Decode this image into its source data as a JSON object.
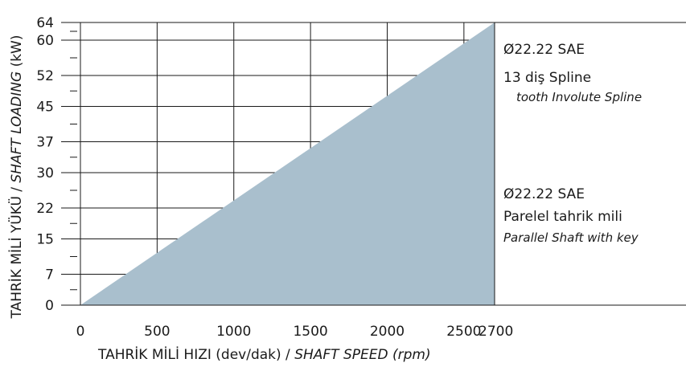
{
  "chart_data": {
    "type": "area",
    "xlabel_main": "TAHRİK MİLİ HIZI (dev/dak) /",
    "xlabel_italic": "SHAFT SPEED (rpm)",
    "ylabel_main": "TAHRİK MİLİ YÜKÜ /",
    "ylabel_italic": "SHAFT LOADING",
    "ylabel_unit": "(kW)",
    "xlim": [
      0,
      2700
    ],
    "ylim": [
      0,
      64
    ],
    "x_ticks": [
      0,
      500,
      1000,
      1500,
      2000,
      2500,
      2700
    ],
    "x_tick_labels": [
      "0",
      "500",
      "1000",
      "1500",
      "2000",
      "2500",
      "2700"
    ],
    "y_ticks": [
      0,
      7,
      15,
      22,
      30,
      37,
      45,
      52,
      60,
      64
    ],
    "y_tick_labels": [
      "0",
      "7",
      "15",
      "22",
      "30",
      "37",
      "45",
      "52",
      "60",
      "64"
    ],
    "grid": true,
    "fill_color": "#a9bfcd",
    "series": [
      {
        "x": [
          0,
          2700
        ],
        "y": [
          0,
          64
        ]
      }
    ],
    "annotations": {
      "spline_title": "Ø22.22  SAE",
      "spline_line1": "13 diş Spline",
      "spline_line2": "tooth Involute Spline",
      "parallel_title": "Ø22.22 SAE",
      "parallel_line1": "Parelel tahrik mili",
      "parallel_line2": "Parallel Shaft with key"
    }
  }
}
